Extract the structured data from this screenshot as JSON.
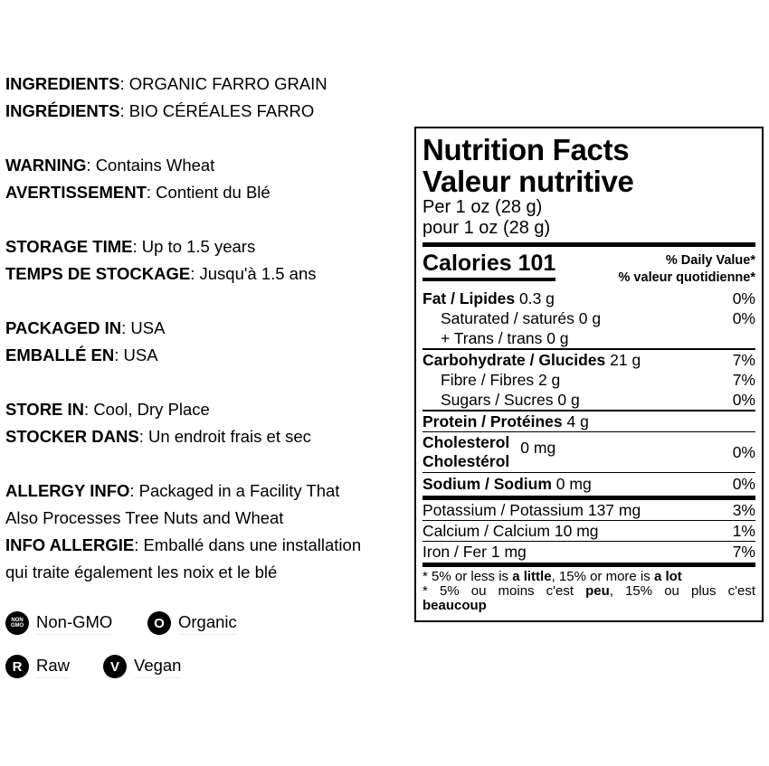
{
  "info": [
    {
      "label": "INGREDIENTS",
      "value": ": ORGANIC FARRO GRAIN"
    },
    {
      "label": "INGRÉDIENTS",
      "value": ": BIO CÉRÉALES FARRO"
    },
    null,
    {
      "label": "WARNING",
      "value": ": Contains Wheat"
    },
    {
      "label": "AVERTISSEMENT",
      "value": ": Contient du Blé"
    },
    null,
    {
      "label": "STORAGE TIME",
      "value": ": Up to 1.5 years"
    },
    {
      "label": "TEMPS DE STOCKAGE",
      "value": ": Jusqu'à 1.5 ans"
    },
    null,
    {
      "label": "PACKAGED IN",
      "value": ": USA"
    },
    {
      "label": "EMBALLÉ EN",
      "value": ": USA"
    },
    null,
    {
      "label": "STORE IN",
      "value": ": Cool, Dry Place"
    },
    {
      "label": "STOCKER DANS",
      "value": ": Un endroit frais et sec"
    },
    null,
    {
      "label": "ALLERGY INFO",
      "value": ": Packaged in a Facility That"
    },
    {
      "label": "",
      "value": "Also Processes Tree Nuts and Wheat"
    },
    {
      "label": "INFO ALLERGIE",
      "value": ": Emballé dans une installation"
    },
    {
      "label": "",
      "value": "qui traite également les noix et le blé"
    }
  ],
  "badges": [
    {
      "icon": "non-gmo-icon",
      "glyph": "NON GMO",
      "label": "Non-GMO"
    },
    {
      "icon": "organic-icon",
      "glyph": "O",
      "label": "Organic"
    },
    {
      "icon": "raw-icon",
      "glyph": "R",
      "label": "Raw"
    },
    {
      "icon": "vegan-icon",
      "glyph": "V",
      "label": "Vegan"
    }
  ],
  "nutrition": {
    "title_en": "Nutrition Facts",
    "title_fr": "Valeur nutritive",
    "serving_en": "Per 1 oz (28 g)",
    "serving_fr": "pour 1 oz (28 g)",
    "calories": "Calories 101",
    "dv_en": "% Daily Value*",
    "dv_fr": "% valeur quotidienne*",
    "fat": {
      "name": "Fat / Lipides",
      "amount": " 0.3 g",
      "dv": "0%"
    },
    "saturated": {
      "name": "Saturated / saturés 0 g",
      "dv": "0%"
    },
    "trans": {
      "name": "+ Trans / trans 0 g"
    },
    "carb": {
      "name": "Carbohydrate / Glucides",
      "amount": " 21 g",
      "dv": "7%"
    },
    "fibre": {
      "name": "Fibre / Fibres 2 g",
      "dv": "7%"
    },
    "sugars": {
      "name": "Sugars / Sucres 0 g",
      "dv": "0%"
    },
    "protein": {
      "name": "Protein / Protéines",
      "amount": " 4 g"
    },
    "cholesterol": {
      "name_en": "Cholesterol",
      "name_fr": "Cholestérol",
      "amount": "0 mg",
      "dv": "0%"
    },
    "sodium": {
      "name": "Sodium / Sodium",
      "amount": " 0 mg",
      "dv": "0%"
    },
    "potassium": {
      "name": "Potassium / Potassium 137 mg",
      "dv": "3%"
    },
    "calcium": {
      "name": "Calcium / Calcium 10 mg",
      "dv": "1%"
    },
    "iron": {
      "name": "Iron / Fer 1 mg",
      "dv": "7%"
    },
    "foot_en": [
      "* 5% or less is ",
      "a little",
      ", 15% or more is ",
      "a lot"
    ],
    "foot_fr": [
      "* 5% ou moins c'est ",
      "peu",
      ", 15% ou plus c'est ",
      "beaucoup"
    ]
  }
}
